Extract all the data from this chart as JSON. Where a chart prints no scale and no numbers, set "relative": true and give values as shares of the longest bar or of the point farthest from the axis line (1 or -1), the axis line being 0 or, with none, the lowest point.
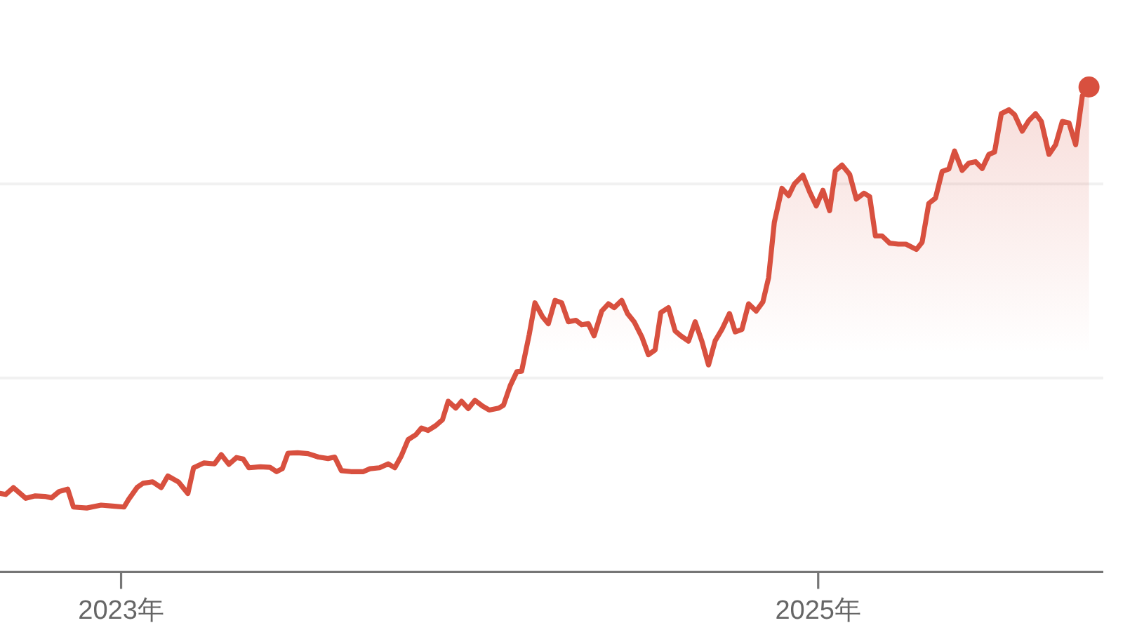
{
  "chart_data": {
    "type": "area",
    "relative": true,
    "xlim": [
      "2022-08-27",
      "2025-10-27"
    ],
    "xticks": [
      {
        "value": "2023-01-01",
        "label": "2023年"
      },
      {
        "value": "2025-01-01",
        "label": "2025年"
      }
    ],
    "tick_labels": "x",
    "ref_lines": [
      {
        "axis": "y",
        "value": 0.4,
        "color": "#f1f1f1"
      },
      {
        "axis": "y",
        "value": 0.8,
        "color": "#f1f1f1"
      }
    ],
    "series": [
      {
        "color": "#d8503f",
        "x": [
          "2022-08-27",
          "2022-09-02",
          "2022-09-10",
          "2022-09-23",
          "2022-10-03",
          "2022-10-13",
          "2022-10-20",
          "2022-10-28",
          "2022-11-06",
          "2022-11-12",
          "2022-11-26",
          "2022-12-11",
          "2022-12-23",
          "2023-01-04",
          "2023-01-09",
          "2023-01-18",
          "2023-01-24",
          "2023-02-03",
          "2023-02-12",
          "2023-02-19",
          "2023-03-02",
          "2023-03-12",
          "2023-03-18",
          "2023-03-29",
          "2023-04-09",
          "2023-04-16",
          "2023-04-24",
          "2023-05-02",
          "2023-05-09",
          "2023-05-15",
          "2023-05-27",
          "2023-06-06",
          "2023-06-13",
          "2023-06-19",
          "2023-06-25",
          "2023-07-05",
          "2023-07-16",
          "2023-07-27",
          "2023-08-06",
          "2023-08-13",
          "2023-08-20",
          "2023-08-30",
          "2023-09-12",
          "2023-09-19",
          "2023-09-29",
          "2023-10-08",
          "2023-10-15",
          "2023-10-22",
          "2023-10-29",
          "2023-11-06",
          "2023-11-12",
          "2023-11-19",
          "2023-11-27",
          "2023-12-04",
          "2023-12-10",
          "2023-12-18",
          "2023-12-24",
          "2023-12-31",
          "2024-01-07",
          "2024-01-15",
          "2024-01-22",
          "2024-02-01",
          "2024-02-06",
          "2024-02-13",
          "2024-02-20",
          "2024-02-25",
          "2024-03-04",
          "2024-03-10",
          "2024-03-18",
          "2024-03-24",
          "2024-03-31",
          "2024-04-07",
          "2024-04-14",
          "2024-04-22",
          "2024-04-28",
          "2024-05-05",
          "2024-05-11",
          "2024-05-19",
          "2024-05-26",
          "2024-06-01",
          "2024-06-09",
          "2024-06-15",
          "2024-06-22",
          "2024-06-30",
          "2024-07-07",
          "2024-07-14",
          "2024-07-20",
          "2024-07-28",
          "2024-08-04",
          "2024-08-10",
          "2024-08-18",
          "2024-08-25",
          "2024-09-01",
          "2024-09-08",
          "2024-09-15",
          "2024-09-22",
          "2024-09-30",
          "2024-10-06",
          "2024-10-13",
          "2024-10-20",
          "2024-10-28",
          "2024-11-04",
          "2024-11-10",
          "2024-11-16",
          "2024-11-24",
          "2024-12-01",
          "2024-12-07",
          "2024-12-16",
          "2024-12-23",
          "2024-12-30",
          "2025-01-06",
          "2025-01-13",
          "2025-01-19",
          "2025-01-26",
          "2025-02-03",
          "2025-02-10",
          "2025-02-18",
          "2025-02-24",
          "2025-03-02",
          "2025-03-09",
          "2025-03-17",
          "2025-03-26",
          "2025-04-03",
          "2025-04-14",
          "2025-04-20",
          "2025-04-27",
          "2025-05-04",
          "2025-05-11",
          "2025-05-18",
          "2025-05-24",
          "2025-06-01",
          "2025-06-08",
          "2025-06-15",
          "2025-06-22",
          "2025-06-29",
          "2025-07-05",
          "2025-07-12",
          "2025-07-20",
          "2025-07-26",
          "2025-08-03",
          "2025-08-10",
          "2025-08-17",
          "2025-08-23",
          "2025-08-31",
          "2025-09-07",
          "2025-09-14",
          "2025-09-21",
          "2025-09-28",
          "2025-10-05",
          "2025-10-12"
        ],
        "values": [
          0.162,
          0.16,
          0.174,
          0.152,
          0.157,
          0.156,
          0.153,
          0.166,
          0.171,
          0.134,
          0.132,
          0.138,
          0.136,
          0.134,
          0.15,
          0.175,
          0.183,
          0.186,
          0.174,
          0.198,
          0.186,
          0.162,
          0.215,
          0.225,
          0.223,
          0.242,
          0.222,
          0.236,
          0.233,
          0.215,
          0.217,
          0.216,
          0.207,
          0.213,
          0.245,
          0.246,
          0.244,
          0.237,
          0.234,
          0.237,
          0.209,
          0.207,
          0.207,
          0.213,
          0.215,
          0.223,
          0.215,
          0.24,
          0.273,
          0.283,
          0.297,
          0.292,
          0.302,
          0.314,
          0.352,
          0.338,
          0.352,
          0.337,
          0.354,
          0.342,
          0.334,
          0.338,
          0.344,
          0.384,
          0.413,
          0.414,
          0.49,
          0.555,
          0.526,
          0.512,
          0.56,
          0.555,
          0.516,
          0.519,
          0.51,
          0.512,
          0.487,
          0.538,
          0.553,
          0.545,
          0.56,
          0.533,
          0.516,
          0.485,
          0.448,
          0.458,
          0.535,
          0.545,
          0.497,
          0.487,
          0.476,
          0.516,
          0.476,
          0.427,
          0.477,
          0.5,
          0.533,
          0.495,
          0.5,
          0.553,
          0.538,
          0.557,
          0.607,
          0.721,
          0.791,
          0.776,
          0.8,
          0.818,
          0.784,
          0.755,
          0.787,
          0.745,
          0.827,
          0.839,
          0.82,
          0.769,
          0.781,
          0.774,
          0.693,
          0.693,
          0.678,
          0.676,
          0.676,
          0.665,
          0.68,
          0.76,
          0.771,
          0.826,
          0.831,
          0.868,
          0.828,
          0.843,
          0.846,
          0.832,
          0.861,
          0.866,
          0.945,
          0.953,
          0.943,
          0.909,
          0.931,
          0.945,
          0.929,
          0.861,
          0.881,
          0.929,
          0.926,
          0.881,
          0.982,
          1.0
        ]
      },
      {
        "type": "scatter",
        "color": "#d8503f",
        "x": [
          "2025-10-12"
        ],
        "values": [
          1.0
        ]
      }
    ]
  }
}
